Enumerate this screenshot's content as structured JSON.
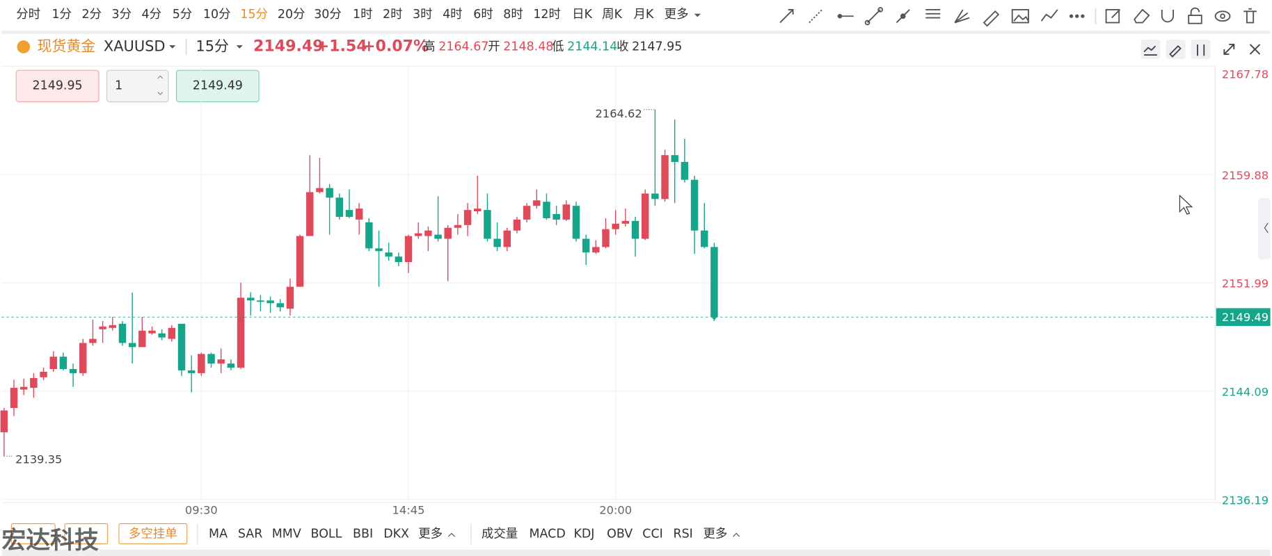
{
  "toolbar": {
    "periods": [
      "分时",
      "1分",
      "2分",
      "3分",
      "4分",
      "5分",
      "10分",
      "15分",
      "20分",
      "30分",
      "1时",
      "2时",
      "3时",
      "4时",
      "6时",
      "8时",
      "12时",
      "日K",
      "周K",
      "月K",
      "更多"
    ]
  },
  "header": {
    "name": "现货黄金",
    "symbol": "XAUUSD",
    "period": "15分",
    "price": "2149.49",
    "change": "+1.54",
    "change_pct": "+0.07%",
    "high_label": "高",
    "high": "2164.67",
    "open_label": "开",
    "open": "2148.48",
    "low_label": "低",
    "low": "2144.14",
    "close_label": "收",
    "close": "2147.95"
  },
  "order": {
    "buy_price": "2149.95",
    "quantity": 1,
    "sell_price": "2149.49"
  },
  "bottom": {
    "button": "多空挂单",
    "indicators_main": [
      "MA",
      "SAR",
      "MMV",
      "BOLL",
      "BBI",
      "DKX",
      "更多"
    ],
    "indicators_sub": [
      "成交量",
      "MACD",
      "KDJ",
      "OBV",
      "CCI",
      "RSI",
      "更多"
    ],
    "watermark": "宏达科技"
  },
  "chart_data": {
    "type": "candlestick",
    "up_color": "#df4a5a",
    "down_color": "#15a58a",
    "categories": [
      null,
      null,
      null,
      null,
      null,
      null,
      null,
      null,
      null,
      null,
      null,
      null,
      null,
      null,
      null,
      null,
      null,
      null,
      null,
      null,
      "09:30",
      null,
      null,
      null,
      null,
      null,
      null,
      null,
      null,
      null,
      null,
      null,
      null,
      null,
      null,
      null,
      null,
      null,
      null,
      null,
      null,
      "14:45",
      null,
      null,
      null,
      null,
      null,
      null,
      null,
      null,
      null,
      null,
      null,
      null,
      null,
      null,
      null,
      null,
      null,
      null,
      null,
      null,
      "20:00",
      null,
      null,
      null,
      null,
      null,
      null,
      null,
      null,
      null,
      null
    ],
    "open": [
      2141.09,
      2142.86,
      2144.2,
      2144.33,
      2145.1,
      2145.7,
      2146.6,
      2145.7,
      2145.4,
      2147.6,
      2148.6,
      2148.7,
      2149.0,
      2147.6,
      2147.3,
      2148.3,
      2148.3,
      2147.9,
      2149.0,
      2145.6,
      2145.4,
      2146.8,
      2146.1,
      2146.1,
      2145.8,
      2150.9,
      2150.7,
      2150.7,
      2150.5,
      2150.1,
      2151.7,
      2155.4,
      2158.6,
      2158.9,
      2158.2,
      2157.3,
      2156.6,
      2156.4,
      2154.5,
      2154.2,
      2153.9,
      2153.5,
      2155.4,
      2155.4,
      2155.5,
      2155.2,
      2156.0,
      2156.2,
      2157.2,
      2157.3,
      2155.2,
      2154.6,
      2155.8,
      2156.6,
      2157.6,
      2157.9,
      2157.0,
      2156.6,
      2157.6,
      2155.2,
      2154.2,
      2154.6,
      2155.9,
      2156.3,
      2156.5,
      2155.2,
      2158.5,
      2158.1,
      2161.3,
      2160.8,
      2159.5,
      2155.8,
      2154.6
    ],
    "high": [
      2142.86,
      2144.92,
      2145.0,
      2145.4,
      2145.8,
      2147.0,
      2146.9,
      2146.1,
      2147.9,
      2149.3,
      2149.2,
      2149.5,
      2149.2,
      2151.28,
      2149.5,
      2148.8,
      2148.6,
      2148.9,
      2149.0,
      2146.7,
      2146.9,
      2146.9,
      2147.2,
      2146.4,
      2152.0,
      2151.3,
      2151.1,
      2151.0,
      2150.8,
      2152.3,
      2155.5,
      2161.3,
      2161.1,
      2159.2,
      2158.5,
      2158.8,
      2157.8,
      2156.7,
      2155.8,
      2154.9,
      2154.2,
      2155.5,
      2156.4,
      2156.1,
      2158.3,
      2156.2,
      2157.0,
      2157.8,
      2159.8,
      2158.5,
      2156.4,
      2156.0,
      2156.8,
      2157.8,
      2158.8,
      2158.5,
      2157.6,
      2158.0,
      2157.9,
      2155.5,
      2155.1,
      2156.7,
      2157.3,
      2157.4,
      2156.8,
      2158.8,
      2164.62,
      2161.7,
      2163.9,
      2162.5,
      2159.8,
      2157.8,
      2154.9
    ],
    "low": [
      2139.35,
      2142.27,
      2143.8,
      2143.6,
      2144.9,
      2145.5,
      2145.6,
      2144.4,
      2145.2,
      2147.4,
      2147.6,
      2148.5,
      2147.4,
      2146.1,
      2147.3,
      2148.2,
      2147.8,
      2147.7,
      2145.2,
      2144.0,
      2145.2,
      2145.8,
      2145.4,
      2145.6,
      2145.7,
      2149.6,
      2149.9,
      2149.8,
      2149.9,
      2149.6,
      2151.7,
      2155.4,
      2158.5,
      2155.5,
      2156.6,
      2156.7,
      2155.5,
      2154.3,
      2151.7,
      2153.6,
      2153.2,
      2152.7,
      2155.2,
      2154.3,
      2155.0,
      2152.1,
      2155.5,
      2155.4,
      2157.0,
      2155.0,
      2154.3,
      2154.3,
      2155.6,
      2156.4,
      2157.4,
      2156.6,
      2156.2,
      2156.5,
      2155.0,
      2153.3,
      2154.1,
      2154.5,
      2155.5,
      2156.1,
      2153.9,
      2155.1,
      2157.6,
      2157.9,
      2157.8,
      2159.3,
      2154.1,
      2154.5,
      2149.2
    ],
    "close": [
      2142.68,
      2144.33,
      2144.4,
      2145.04,
      2145.5,
      2146.6,
      2145.7,
      2145.4,
      2147.6,
      2147.9,
      2148.8,
      2148.9,
      2147.6,
      2147.3,
      2148.5,
      2148.5,
      2148.0,
      2148.7,
      2145.6,
      2145.4,
      2146.8,
      2146.1,
      2146.4,
      2145.8,
      2150.9,
      2150.7,
      2150.6,
      2150.5,
      2150.2,
      2151.7,
      2155.4,
      2158.6,
      2158.9,
      2158.2,
      2156.8,
      2156.8,
      2157.4,
      2154.5,
      2154.3,
      2153.9,
      2153.5,
      2155.4,
      2155.6,
      2155.8,
      2155.2,
      2156.0,
      2156.2,
      2157.3,
      2157.4,
      2155.2,
      2154.6,
      2155.8,
      2156.6,
      2157.6,
      2158.0,
      2156.7,
      2156.6,
      2157.7,
      2155.2,
      2154.2,
      2154.6,
      2155.9,
      2156.3,
      2156.5,
      2155.2,
      2158.5,
      2158.1,
      2161.3,
      2160.8,
      2159.5,
      2155.8,
      2154.6,
      2149.49
    ],
    "ylim": [
      2136.19,
      2167.78
    ],
    "yticks": [
      2136.19,
      2144.09,
      2151.99,
      2159.88,
      2167.78
    ],
    "grid": true
  }
}
